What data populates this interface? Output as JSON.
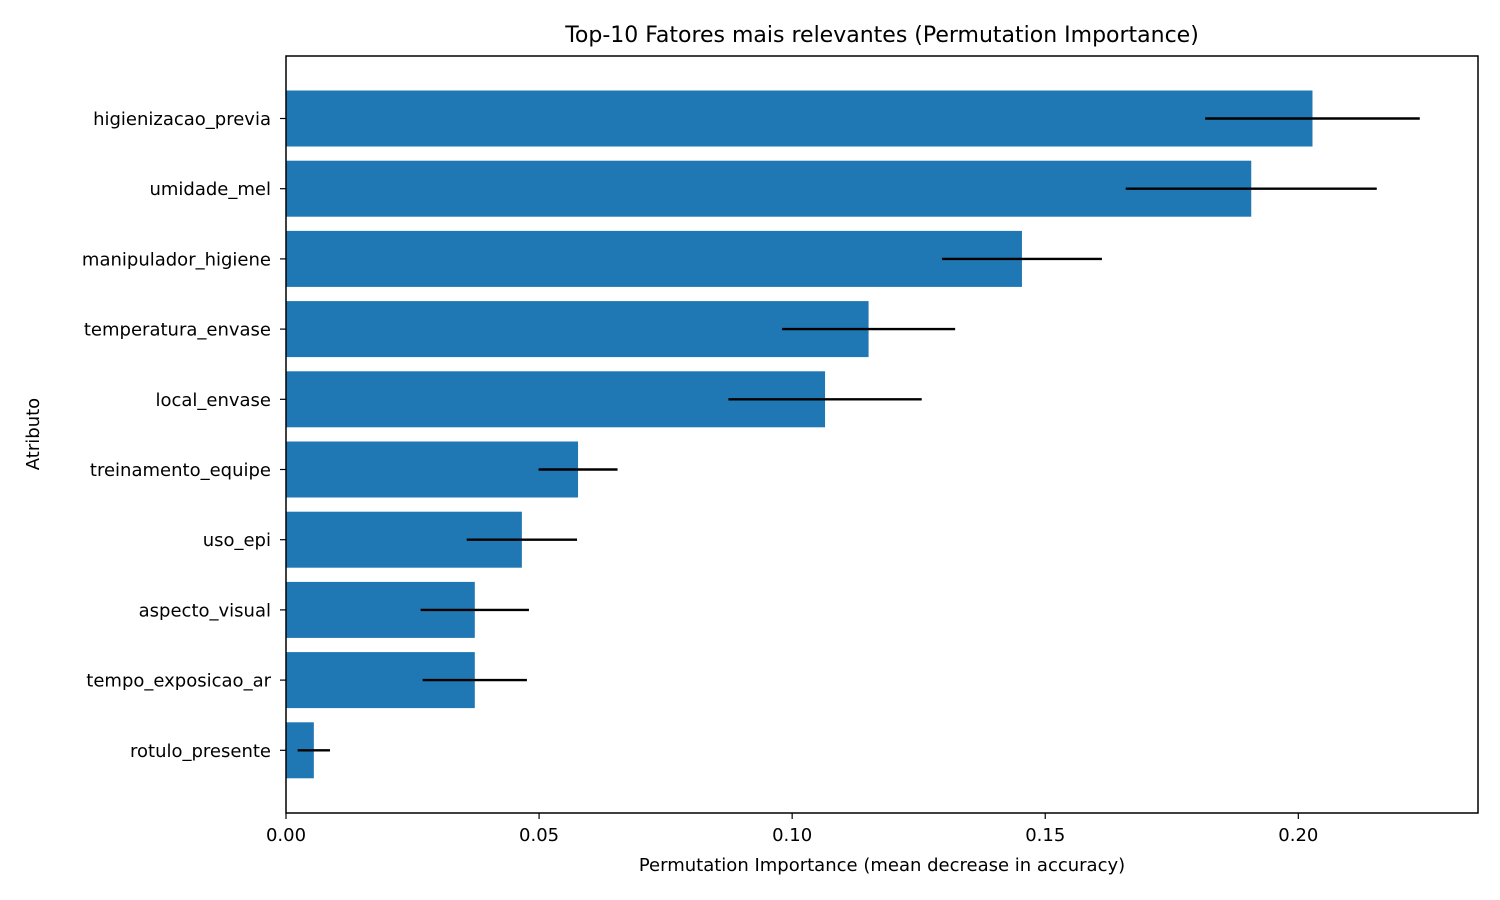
{
  "chart_data": {
    "type": "bar",
    "orientation": "horizontal",
    "title": "Top-10 Fatores mais relevantes (Permutation Importance)",
    "xlabel": "Permutation Importance (mean decrease in accuracy)",
    "ylabel": "Atributo",
    "categories": [
      "higienizacao_previa",
      "umidade_mel",
      "manipulador_higiene",
      "temperatura_envase",
      "local_envase",
      "treinamento_equipe",
      "uso_epi",
      "aspecto_visual",
      "tempo_exposicao_ar",
      "rotulo_presente"
    ],
    "values": [
      0.2028,
      0.1907,
      0.1454,
      0.1151,
      0.1065,
      0.0577,
      0.0466,
      0.0373,
      0.0373,
      0.0055
    ],
    "errors": [
      0.0212,
      0.0248,
      0.0158,
      0.0171,
      0.0191,
      0.0078,
      0.0109,
      0.0107,
      0.0103,
      0.0032
    ],
    "xlim": [
      0,
      0.2355
    ],
    "xticks": [
      "0.00",
      "0.05",
      "0.10",
      "0.15",
      "0.20"
    ],
    "xtick_values": [
      0,
      0.05,
      0.1,
      0.15,
      0.2
    ],
    "grid": false,
    "colors": {
      "bar": "#1f77b4",
      "error": "#000000",
      "axis": "#000000"
    }
  }
}
